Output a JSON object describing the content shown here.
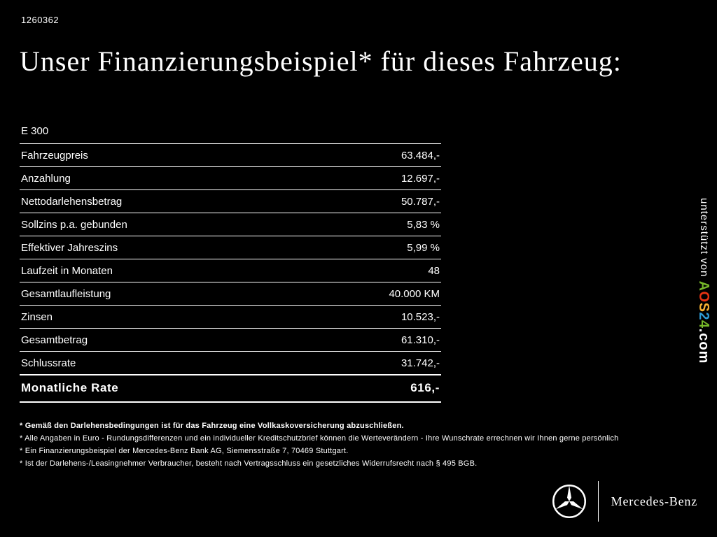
{
  "meta": {
    "page_id": "1260362"
  },
  "heading": "Unser Finanzierungsbeispiel* für dieses Fahrzeug:",
  "financing_table": {
    "model": "E 300",
    "rows": [
      {
        "label": "Fahrzeugpreis",
        "value": "63.484,-"
      },
      {
        "label": "Anzahlung",
        "value": "12.697,-"
      },
      {
        "label": "Nettodarlehensbetrag",
        "value": "50.787,-"
      },
      {
        "label": "Sollzins p.a. gebunden",
        "value": "5,83 %"
      },
      {
        "label": "Effektiver Jahreszins",
        "value": "5,99 %"
      },
      {
        "label": "Laufzeit in Monaten",
        "value": "48"
      },
      {
        "label": "Gesamtlaufleistung",
        "value": "40.000 KM"
      },
      {
        "label": "Zinsen",
        "value": "10.523,-"
      },
      {
        "label": "Gesamtbetrag",
        "value": "61.310,-"
      },
      {
        "label": "Schlussrate",
        "value": "31.742,-"
      }
    ],
    "total_row": {
      "label": "Monatliche Rate",
      "value": "616,-"
    }
  },
  "footnotes": [
    {
      "text": "* Gemäß den Darlehensbedingungen ist für das Fahrzeug eine Vollkaskoversicherung abzuschließen.",
      "bold": true
    },
    {
      "text": "* Alle Angaben in Euro - Rundungsdifferenzen und ein individueller Kreditschutzbrief können die Werteverändern - Ihre Wunschrate errechnen wir Ihnen gerne persönlich",
      "bold": false
    },
    {
      "text": "* Ein Finanzierungsbeispiel der Mercedes-Benz Bank AG, Siemensstraße 7, 70469 Stuttgart.",
      "bold": false
    },
    {
      "text": "* Ist der Darlehens-/Leasingnehmer Verbraucher, besteht nach Vertragsschluss ein gesetzliches Widerrufsrecht nach § 495 BGB.",
      "bold": false
    }
  ],
  "side_credit": {
    "prefix": "unterstützt von ",
    "brand_letters": [
      {
        "ch": "A",
        "color": "#76b82a"
      },
      {
        "ch": "O",
        "color": "#e63312"
      },
      {
        "ch": "S",
        "color": "#f9b233"
      },
      {
        "ch": "2",
        "color": "#2e9bd6"
      },
      {
        "ch": "4",
        "color": "#76b82a"
      }
    ],
    "suffix": ".com"
  },
  "footer": {
    "brand": "Mercedes-Benz"
  }
}
